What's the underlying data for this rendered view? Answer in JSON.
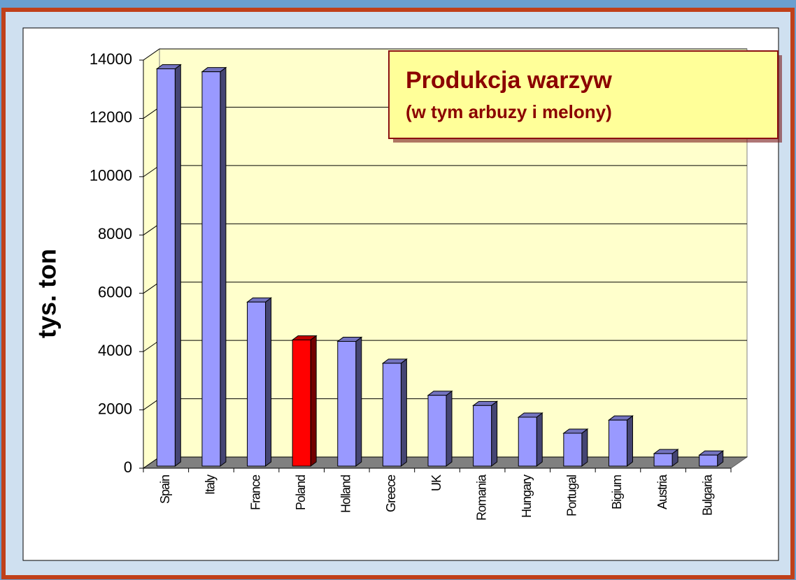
{
  "chart_data": {
    "type": "bar3d",
    "title": "Produkcja warzyw",
    "subtitle": "(w tym arbuzy i melony)",
    "y_label": "tys. ton",
    "categories": [
      "Spain",
      "Italy",
      "France",
      "Poland",
      "Holland",
      "Greece",
      "UK",
      "Romania",
      "Hungary",
      "Portugal",
      "Bigium",
      "Austria",
      "Bulgaria"
    ],
    "values": [
      13700,
      13600,
      5700,
      4400,
      4350,
      3600,
      2500,
      2150,
      1750,
      1200,
      1650,
      500,
      450
    ],
    "colors": [
      "#9999ff",
      "#9999ff",
      "#9999ff",
      "#ff0000",
      "#9999ff",
      "#9999ff",
      "#9999ff",
      "#9999ff",
      "#9999ff",
      "#9999ff",
      "#9999ff",
      "#9999ff",
      "#9999ff"
    ],
    "ylim": [
      0,
      14000
    ],
    "yticks": [
      0,
      2000,
      4000,
      6000,
      8000,
      10000,
      12000,
      14000
    ],
    "grid": true
  }
}
